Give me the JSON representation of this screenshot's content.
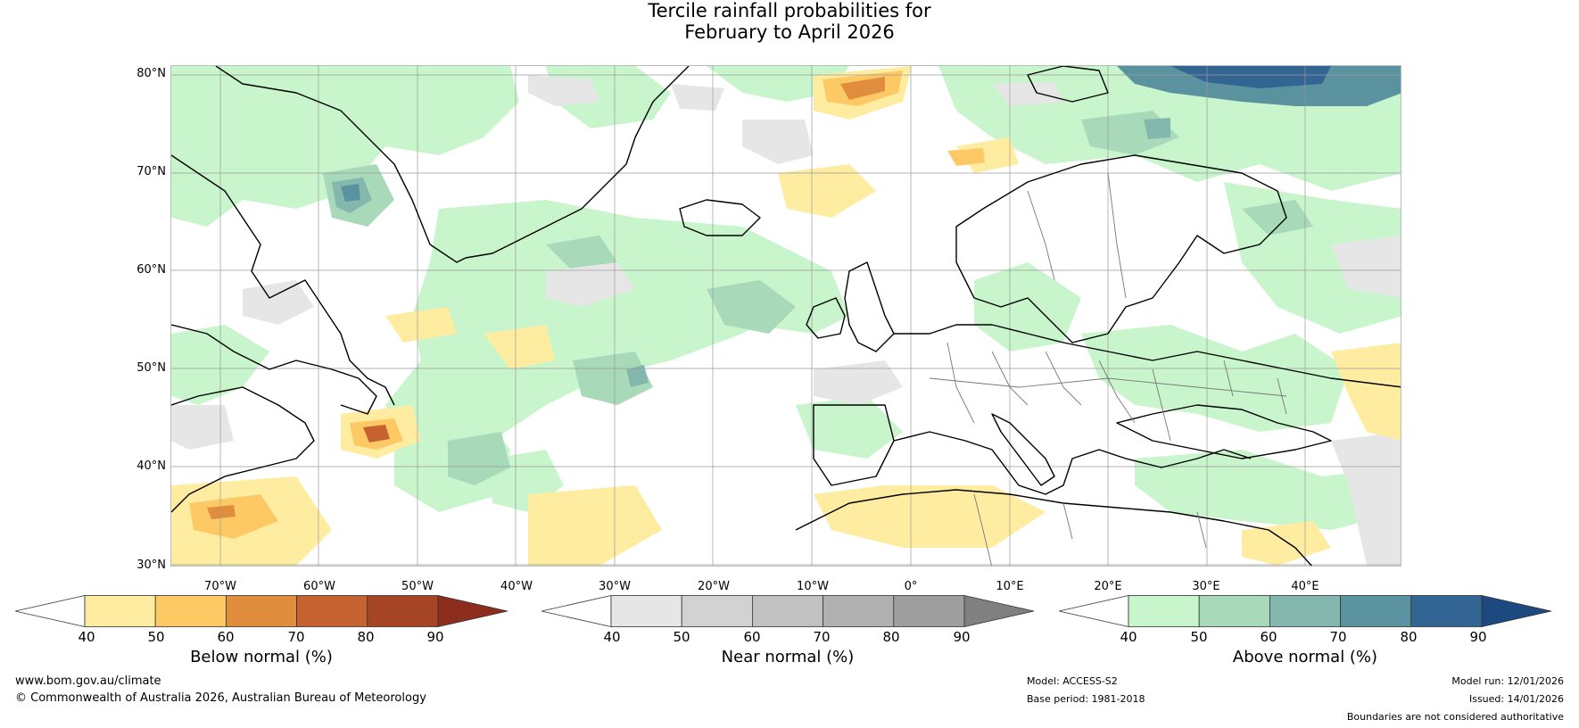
{
  "title": {
    "line1": "Tercile rainfall probabilities for",
    "line2": "February to April 2026"
  },
  "map": {
    "lat_labels": [
      "80°N",
      "70°N",
      "60°N",
      "50°N",
      "40°N",
      "30°N"
    ],
    "lon_labels": [
      "70°W",
      "60°W",
      "50°W",
      "40°W",
      "30°W",
      "20°W",
      "10°W",
      "0°",
      "10°E",
      "20°E",
      "30°E",
      "40°E"
    ]
  },
  "colorbars": {
    "below": {
      "label": "Below normal (%)",
      "ticks": [
        "40",
        "50",
        "60",
        "70",
        "80",
        "90"
      ],
      "colors": [
        "#ffffff",
        "#feeca0",
        "#fdc964",
        "#e08e3e",
        "#c6622f",
        "#a64426",
        "#8c2d1e"
      ]
    },
    "near": {
      "label": "Near normal (%)",
      "ticks": [
        "40",
        "50",
        "60",
        "70",
        "80",
        "90"
      ],
      "colors": [
        "#ffffff",
        "#e6e6e6",
        "#d2d2d2",
        "#c1c1c1",
        "#b0b0b0",
        "#9e9e9e",
        "#808080"
      ]
    },
    "above": {
      "label": "Above normal (%)",
      "ticks": [
        "40",
        "50",
        "60",
        "70",
        "80",
        "90"
      ],
      "colors": [
        "#ffffff",
        "#c8f5cc",
        "#a8d9b8",
        "#84b8ae",
        "#5a92a0",
        "#336592",
        "#1c4a80"
      ]
    }
  },
  "footer": {
    "website": "www.bom.gov.au/climate",
    "copyright": "© Commonwealth of Australia 2026, Australian Bureau of Meteorology",
    "model": "Model: ACCESS-S2",
    "base_period": "Base period: 1981-2018",
    "model_run": "Model run: 12/01/2026",
    "issued": "Issued: 14/01/2026",
    "boundaries_note": "Boundaries are not considered authoritative"
  }
}
